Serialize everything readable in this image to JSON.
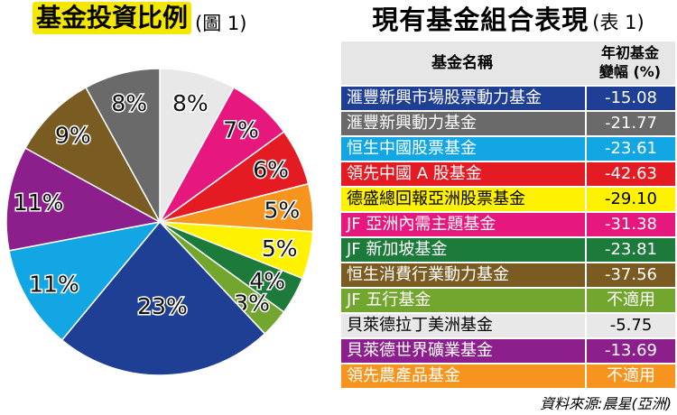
{
  "pie_title": {
    "main": "基金投資比例",
    "sub": "(圖 1)"
  },
  "table_title": {
    "main": "現有基金組合表現",
    "sub": "(表 1)"
  },
  "table_header": {
    "name": "基金名稱",
    "change_line1": "年初基金",
    "change_line2": "變幅 (%)"
  },
  "table_rows": [
    {
      "name": "滙豐新興市場股票動力基金",
      "value": "-15.08",
      "bg": "#1f3f95",
      "fg": "#ffffff"
    },
    {
      "name": "滙豐新興動力基金",
      "value": "-21.77",
      "bg": "#6a6a6a",
      "fg": "#ffffff"
    },
    {
      "name": "恒生中國股票基金",
      "value": "-23.61",
      "bg": "#12a6e4",
      "fg": "#ffffff"
    },
    {
      "name": "領先中國 A 股基金",
      "value": "-42.63",
      "bg": "#e51b24",
      "fg": "#ffffff"
    },
    {
      "name": "德盛總回報亞洲股票基金",
      "value": "-29.10",
      "bg": "#fff200",
      "fg": "#000000"
    },
    {
      "name": "JF 亞洲內需主題基金",
      "value": "-31.38",
      "bg": "#e6177d",
      "fg": "#ffffff"
    },
    {
      "name": "JF 新加坡基金",
      "value": "-23.81",
      "bg": "#1c7a3a",
      "fg": "#ffffff"
    },
    {
      "name": "恒生消費行業動力基金",
      "value": "-37.56",
      "bg": "#7a5c22",
      "fg": "#ffffff"
    },
    {
      "name": "JF 五行基金",
      "value": "不適用",
      "bg": "#72a62e",
      "fg": "#ffffff"
    },
    {
      "name": "貝萊德拉丁美洲基金",
      "value": "-5.75",
      "bg": "#e8e8e8",
      "fg": "#000000"
    },
    {
      "name": "貝萊德世界礦業基金",
      "value": "-13.69",
      "bg": "#8c1f8c",
      "fg": "#ffffff"
    },
    {
      "name": "領先農產品基金",
      "value": "不適用",
      "bg": "#f7941d",
      "fg": "#ffffff"
    }
  ],
  "source": "資料來源:晨星(亞洲)",
  "chart_data": {
    "type": "pie",
    "labels": [
      "8%",
      "7%",
      "6%",
      "5%",
      "5%",
      "4%",
      "3%",
      "23%",
      "11%",
      "11%",
      "9%",
      "8%"
    ],
    "values": [
      8,
      7,
      6,
      5,
      5,
      4,
      3,
      23,
      11,
      11,
      9,
      8
    ],
    "colors": [
      "#e8e8e8",
      "#e6177d",
      "#e51b24",
      "#f7941d",
      "#fff200",
      "#1c7a3a",
      "#72a62e",
      "#1f3f95",
      "#12a6e4",
      "#8c1f8c",
      "#7a5c22",
      "#6a6a6a"
    ]
  }
}
